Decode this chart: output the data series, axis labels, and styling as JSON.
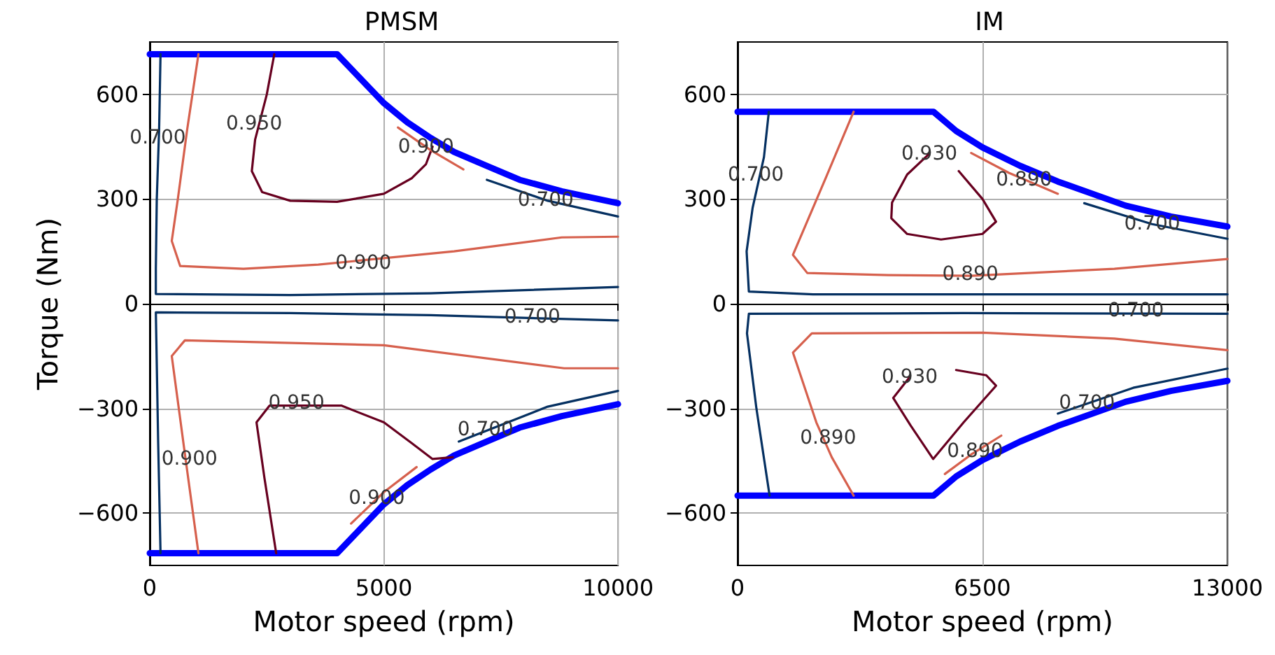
{
  "chart_data": [
    {
      "type": "line",
      "title": "PMSM",
      "xlabel": "Motor speed (rpm)",
      "ylabel": "Torque (Nm)",
      "xlim": [
        0,
        10000
      ],
      "xticks": [
        0,
        5000,
        10000
      ],
      "ylim": [
        -750,
        750
      ],
      "yticks": [
        -600,
        -300,
        0,
        300,
        600
      ],
      "grid": true,
      "marker": "none",
      "line_style": "solid",
      "series": [
        {
          "color": "#0000ff",
          "x": [
            0,
            4000,
            4500,
            5000,
            5500,
            6000,
            6500,
            7200,
            7900,
            8800,
            10000
          ],
          "values": [
            715,
            715,
            645,
            575,
            520,
            475,
            435,
            395,
            355,
            322,
            288
          ]
        },
        {
          "color": "#0000ff",
          "x": [
            0,
            4000,
            4500,
            5000,
            5500,
            6000,
            6500,
            7200,
            7900,
            8800,
            10000
          ],
          "values": [
            -715,
            -715,
            -645,
            -575,
            -520,
            -475,
            -435,
            -395,
            -355,
            -322,
            -288
          ]
        },
        {
          "color": "#053061",
          "x": [
            230,
            200,
            150,
            130,
            130,
            3000,
            6000,
            10000
          ],
          "values": [
            715,
            500,
            300,
            100,
            28,
            25,
            30,
            48
          ]
        },
        {
          "color": "#d6604d",
          "x": [
            1040,
            800,
            600,
            470,
            650,
            2000,
            3600,
            6500,
            8800,
            10000
          ],
          "values": [
            715,
            500,
            300,
            180,
            108,
            100,
            112,
            150,
            190,
            192
          ]
        },
        {
          "color": "#67001f",
          "x": [
            2660,
            2500,
            2250,
            2180,
            2400,
            3000,
            4000,
            5000,
            5600,
            5900,
            6040
          ],
          "values": [
            715,
            600,
            470,
            380,
            320,
            295,
            292,
            315,
            360,
            400,
            450
          ]
        },
        {
          "color": "#d6604d",
          "x": [
            5300,
            6000,
            6700
          ],
          "values": [
            505,
            440,
            385
          ]
        },
        {
          "color": "#053061",
          "x": [
            7200,
            8500,
            10000
          ],
          "values": [
            355,
            295,
            250
          ]
        },
        {
          "color": "#053061",
          "x": [
            230,
            180,
            140,
            130,
            3000,
            6000,
            10000
          ],
          "values": [
            -715,
            -400,
            -100,
            -25,
            -27,
            -33,
            -48
          ]
        },
        {
          "color": "#d6604d",
          "x": [
            1040,
            750,
            470,
            750,
            5000,
            8850,
            10000
          ],
          "values": [
            -715,
            -430,
            -150,
            -105,
            -119,
            -185,
            -185
          ]
        },
        {
          "color": "#67001f",
          "x": [
            2700,
            2450,
            2280,
            2560,
            4090,
            5000,
            5600,
            6040,
            6470
          ],
          "values": [
            -715,
            -500,
            -340,
            -292,
            -292,
            -340,
            -400,
            -445,
            -440
          ]
        },
        {
          "color": "#d6604d",
          "x": [
            4300,
            5000,
            5700
          ],
          "values": [
            -630,
            -540,
            -468
          ]
        },
        {
          "color": "#053061",
          "x": [
            6600,
            8500,
            10000
          ],
          "values": [
            -395,
            -295,
            -250
          ]
        }
      ],
      "annotations": [
        {
          "text": "0.700",
          "x": 171,
          "y": 476
        },
        {
          "text": "0.950",
          "x": 2229,
          "y": 516
        },
        {
          "text": "0.900",
          "x": 5900,
          "y": 450
        },
        {
          "text": "0.700",
          "x": 8457,
          "y": 297
        },
        {
          "text": "0.900",
          "x": 4562,
          "y": 116
        },
        {
          "text": "0.700",
          "x": 8171,
          "y": -39
        },
        {
          "text": "0.950",
          "x": 3133,
          "y": -285
        },
        {
          "text": "0.900",
          "x": 848,
          "y": -445
        },
        {
          "text": "0.700",
          "x": 7171,
          "y": -360
        },
        {
          "text": "0.900",
          "x": 4848,
          "y": -557
        }
      ]
    },
    {
      "type": "line",
      "title": "IM",
      "xlabel": "Motor speed (rpm)",
      "xlim": [
        0,
        13000
      ],
      "xticks": [
        0,
        6500,
        13000
      ],
      "ylim": [
        -750,
        750
      ],
      "yticks": [
        -600,
        -300,
        0,
        300,
        600
      ],
      "grid": true,
      "marker": "none",
      "line_style": "solid",
      "series": [
        {
          "color": "#0000ff",
          "x": [
            0,
            5200,
            5800,
            6500,
            7500,
            8500,
            10300,
            11500,
            13000
          ],
          "values": [
            550,
            550,
            495,
            448,
            395,
            350,
            281,
            250,
            221
          ]
        },
        {
          "color": "#0000ff",
          "x": [
            0,
            5200,
            5800,
            6500,
            7500,
            8500,
            10300,
            11500,
            13000
          ],
          "values": [
            -550,
            -550,
            -495,
            -448,
            -395,
            -350,
            -281,
            -250,
            -221
          ]
        },
        {
          "color": "#053061",
          "x": [
            830,
            700,
            400,
            240,
            300,
            2000,
            13000
          ],
          "values": [
            550,
            420,
            275,
            150,
            35,
            27,
            27
          ]
        },
        {
          "color": "#d6604d",
          "x": [
            3080,
            2300,
            1470,
            1850,
            4000,
            6200,
            10000,
            13000
          ],
          "values": [
            550,
            350,
            140,
            88,
            82,
            80,
            100,
            128
          ]
        },
        {
          "color": "#67001f",
          "x": [
            5088,
            4500,
            4100,
            4080,
            4500,
            5400,
            6500,
            6860,
            6500,
            5870
          ],
          "values": [
            430,
            370,
            290,
            245,
            200,
            184,
            200,
            235,
            300,
            380
          ]
        },
        {
          "color": "#d6604d",
          "x": [
            6200,
            7200,
            8500
          ],
          "values": [
            432,
            375,
            315
          ]
        },
        {
          "color": "#053061",
          "x": [
            9200,
            11000,
            13000
          ],
          "values": [
            288,
            228,
            186
          ]
        },
        {
          "color": "#053061",
          "x": [
            850,
            500,
            250,
            300,
            6000,
            13000
          ],
          "values": [
            -550,
            -300,
            -85,
            -29,
            -27,
            -29
          ]
        },
        {
          "color": "#d6604d",
          "x": [
            3080,
            2500,
            2090,
            1470,
            1970,
            6500,
            10000,
            13000
          ],
          "values": [
            -550,
            -440,
            -340,
            -140,
            -85,
            -83,
            -100,
            -133
          ]
        },
        {
          "color": "#67001f",
          "x": [
            4569,
            4130,
            4600,
            5190,
            6000,
            6860,
            6600,
            5800
          ],
          "values": [
            -210,
            -270,
            -350,
            -445,
            -340,
            -235,
            -205,
            -190
          ]
        },
        {
          "color": "#d6604d",
          "x": [
            5500,
            6200,
            7000
          ],
          "values": [
            -488,
            -432,
            -378
          ]
        },
        {
          "color": "#053061",
          "x": [
            8500,
            10500,
            13000
          ],
          "values": [
            -315,
            -241,
            -186
          ]
        }
      ],
      "annotations": [
        {
          "text": "0.700",
          "x": 483,
          "y": 368
        },
        {
          "text": "0.930",
          "x": 5088,
          "y": 430
        },
        {
          "text": "0.890",
          "x": 7603,
          "y": 355
        },
        {
          "text": "0.700",
          "x": 11005,
          "y": 228
        },
        {
          "text": "0.890",
          "x": 6178,
          "y": 85
        },
        {
          "text": "0.700",
          "x": 10574,
          "y": -21
        },
        {
          "text": "0.930",
          "x": 4569,
          "y": -210
        },
        {
          "text": "0.890",
          "x": 2403,
          "y": -385
        },
        {
          "text": "0.700",
          "x": 9274,
          "y": -285
        },
        {
          "text": "0.890",
          "x": 6303,
          "y": -423
        }
      ]
    }
  ]
}
